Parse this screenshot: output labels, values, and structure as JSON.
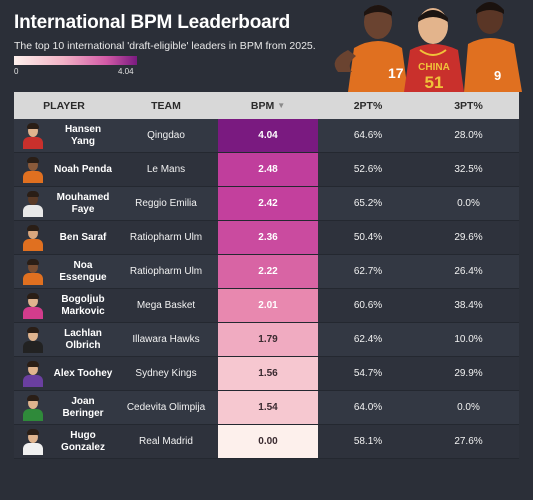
{
  "header": {
    "title": "International BPM Leaderboard",
    "subtitle": "The top 10 international 'draft-eligible' leaders in BPM from 2025.",
    "scale_min": "0",
    "scale_max": "4.04"
  },
  "hero": {
    "jersey_text": "CHINA",
    "jersey_number": "51",
    "left_number": "17",
    "right_number": "9"
  },
  "columns": {
    "player": "PLAYER",
    "team": "TEAM",
    "bpm": "BPM",
    "two_pt": "2PT%",
    "three_pt": "3PT%"
  },
  "rows": [
    {
      "player": "Hansen Yang",
      "team": "Qingdao",
      "bpm": "4.04",
      "bpm_value": 4.04,
      "two_pt": "64.6%",
      "three_pt": "28.0%",
      "jersey_color": "#c9302c",
      "skin": "#e0b48e"
    },
    {
      "player": "Noah Penda",
      "team": "Le Mans",
      "bpm": "2.48",
      "bpm_value": 2.48,
      "two_pt": "52.6%",
      "three_pt": "32.5%",
      "jersey_color": "#e07020",
      "skin": "#8a5a3a"
    },
    {
      "player": "Mouhamed Faye",
      "team": "Reggio Emilia",
      "bpm": "2.42",
      "bpm_value": 2.42,
      "two_pt": "65.2%",
      "three_pt": "0.0%",
      "jersey_color": "#e8e8e8",
      "skin": "#5a3a26"
    },
    {
      "player": "Ben Saraf",
      "team": "Ratiopharm Ulm",
      "bpm": "2.36",
      "bpm_value": 2.36,
      "two_pt": "50.4%",
      "three_pt": "29.6%",
      "jersey_color": "#e07020",
      "skin": "#d9a77e"
    },
    {
      "player": "Noa Essengue",
      "team": "Ratiopharm Ulm",
      "bpm": "2.22",
      "bpm_value": 2.22,
      "two_pt": "62.7%",
      "three_pt": "26.4%",
      "jersey_color": "#e07020",
      "skin": "#7a4e32"
    },
    {
      "player": "Bogoljub Markovic",
      "team": "Mega Basket",
      "bpm": "2.01",
      "bpm_value": 2.01,
      "two_pt": "60.6%",
      "three_pt": "38.4%",
      "jersey_color": "#d23c8c",
      "skin": "#e0b48e"
    },
    {
      "player": "Lachlan Olbrich",
      "team": "Illawara Hawks",
      "bpm": "1.79",
      "bpm_value": 1.79,
      "two_pt": "62.4%",
      "three_pt": "10.0%",
      "jersey_color": "#222222",
      "skin": "#e0b48e"
    },
    {
      "player": "Alex Toohey",
      "team": "Sydney Kings",
      "bpm": "1.56",
      "bpm_value": 1.56,
      "two_pt": "54.7%",
      "three_pt": "29.9%",
      "jersey_color": "#6a3fa0",
      "skin": "#e0b48e"
    },
    {
      "player": "Joan Beringer",
      "team": "Cedevita Olimpija",
      "bpm": "1.54",
      "bpm_value": 1.54,
      "two_pt": "64.0%",
      "three_pt": "0.0%",
      "jersey_color": "#2f8a3a",
      "skin": "#e0b48e"
    },
    {
      "player": "Hugo Gonzalez",
      "team": "Real Madrid",
      "bpm": "0.00",
      "bpm_value": 0.0,
      "two_pt": "58.1%",
      "three_pt": "27.6%",
      "jersey_color": "#f0f0f0",
      "skin": "#e0b48e"
    }
  ],
  "bpm_colors": {
    "max": "#7a1a80",
    "high": "#c33f9d",
    "mid": "#e57aa8",
    "low": "#f6c6cf",
    "min": "#fdf0ec"
  }
}
